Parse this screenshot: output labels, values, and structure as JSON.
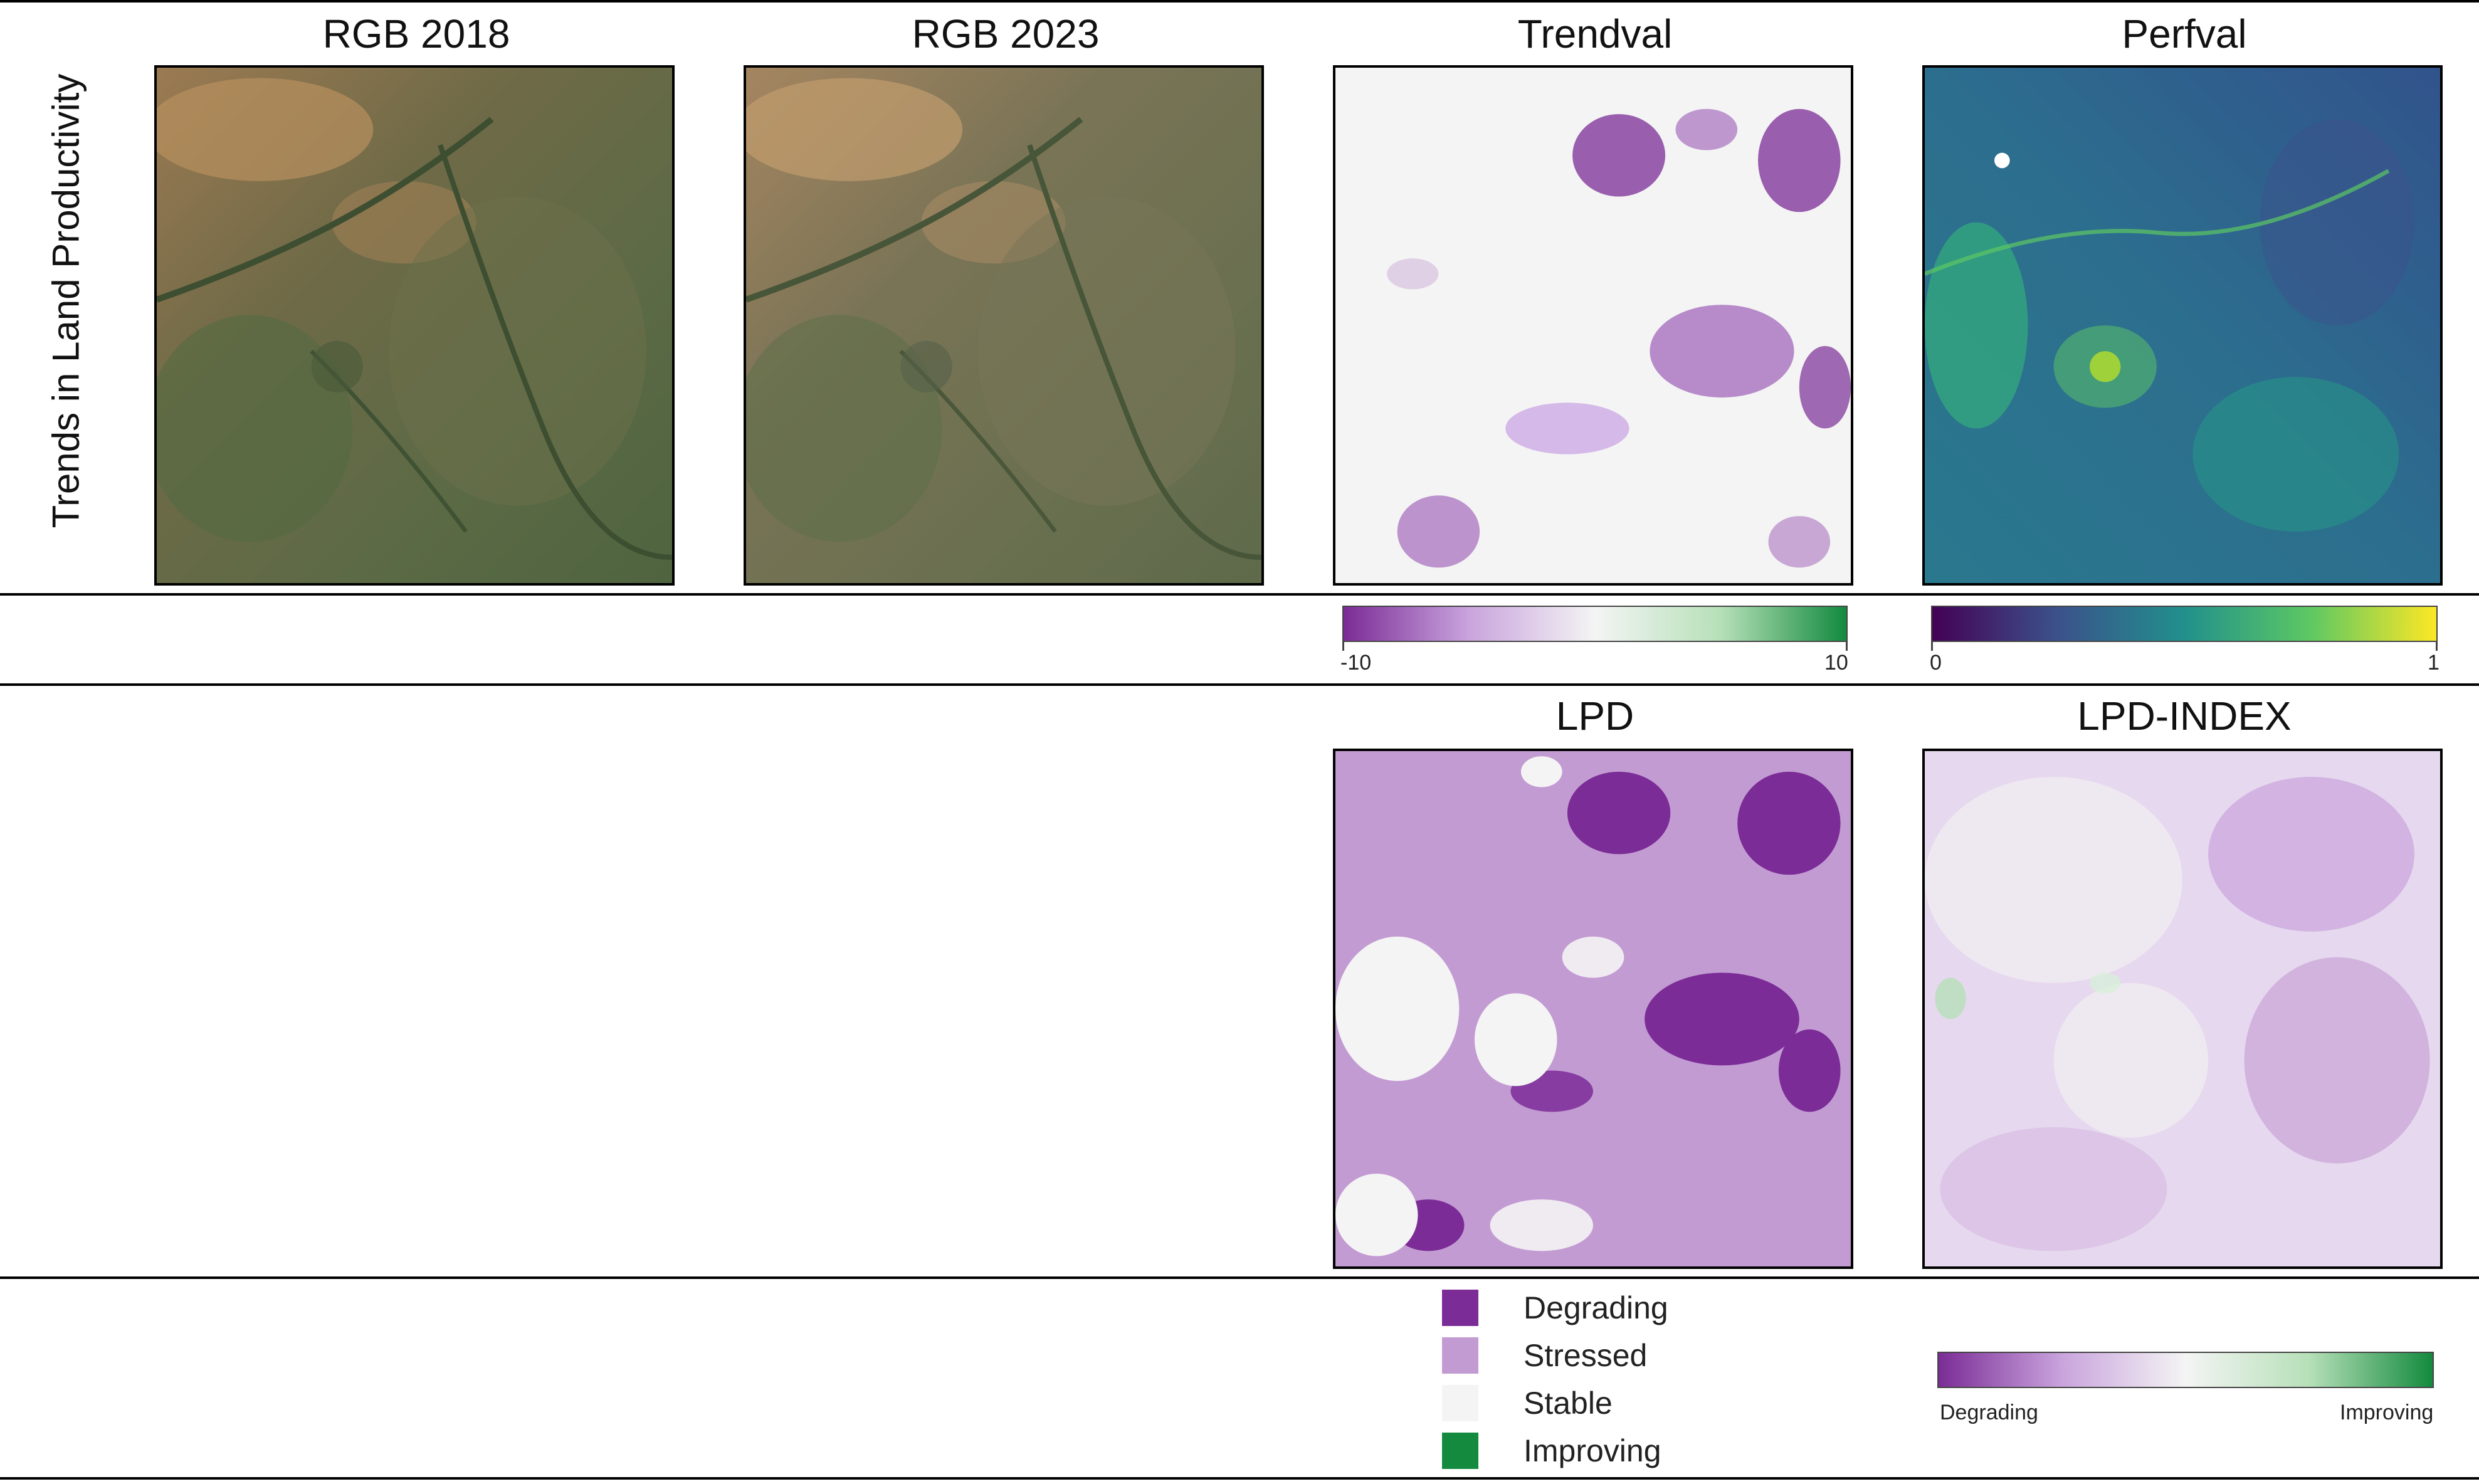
{
  "row_label": "Trends in Land Productivity",
  "panels": {
    "rgb2018": "RGB 2018",
    "rgb2023": "RGB 2023",
    "trendval": "Trendval",
    "perfval": "Perfval",
    "lpd": "LPD",
    "lpd_index": "LPD-INDEX"
  },
  "trendval_colorbar": {
    "min": "-10",
    "max": "10",
    "colors": [
      "#7b2c96",
      "#f4f4f4",
      "#138a3e"
    ]
  },
  "perfval_colorbar": {
    "min": "0",
    "max": "1",
    "colors": [
      "#440154",
      "#3b528b",
      "#21908c",
      "#5dc863",
      "#fde725"
    ]
  },
  "lpd_legend": [
    {
      "label": "Degrading",
      "color": "#7b2c96"
    },
    {
      "label": "Stressed",
      "color": "#c39bd3"
    },
    {
      "label": "Stable",
      "color": "#f4f4f4"
    },
    {
      "label": "Improving",
      "color": "#138a3e"
    }
  ],
  "lpd_index_colorbar": {
    "min": "Degrading",
    "max": "Improving",
    "colors": [
      "#7b2c96",
      "#f4f4f4",
      "#138a3e"
    ]
  }
}
